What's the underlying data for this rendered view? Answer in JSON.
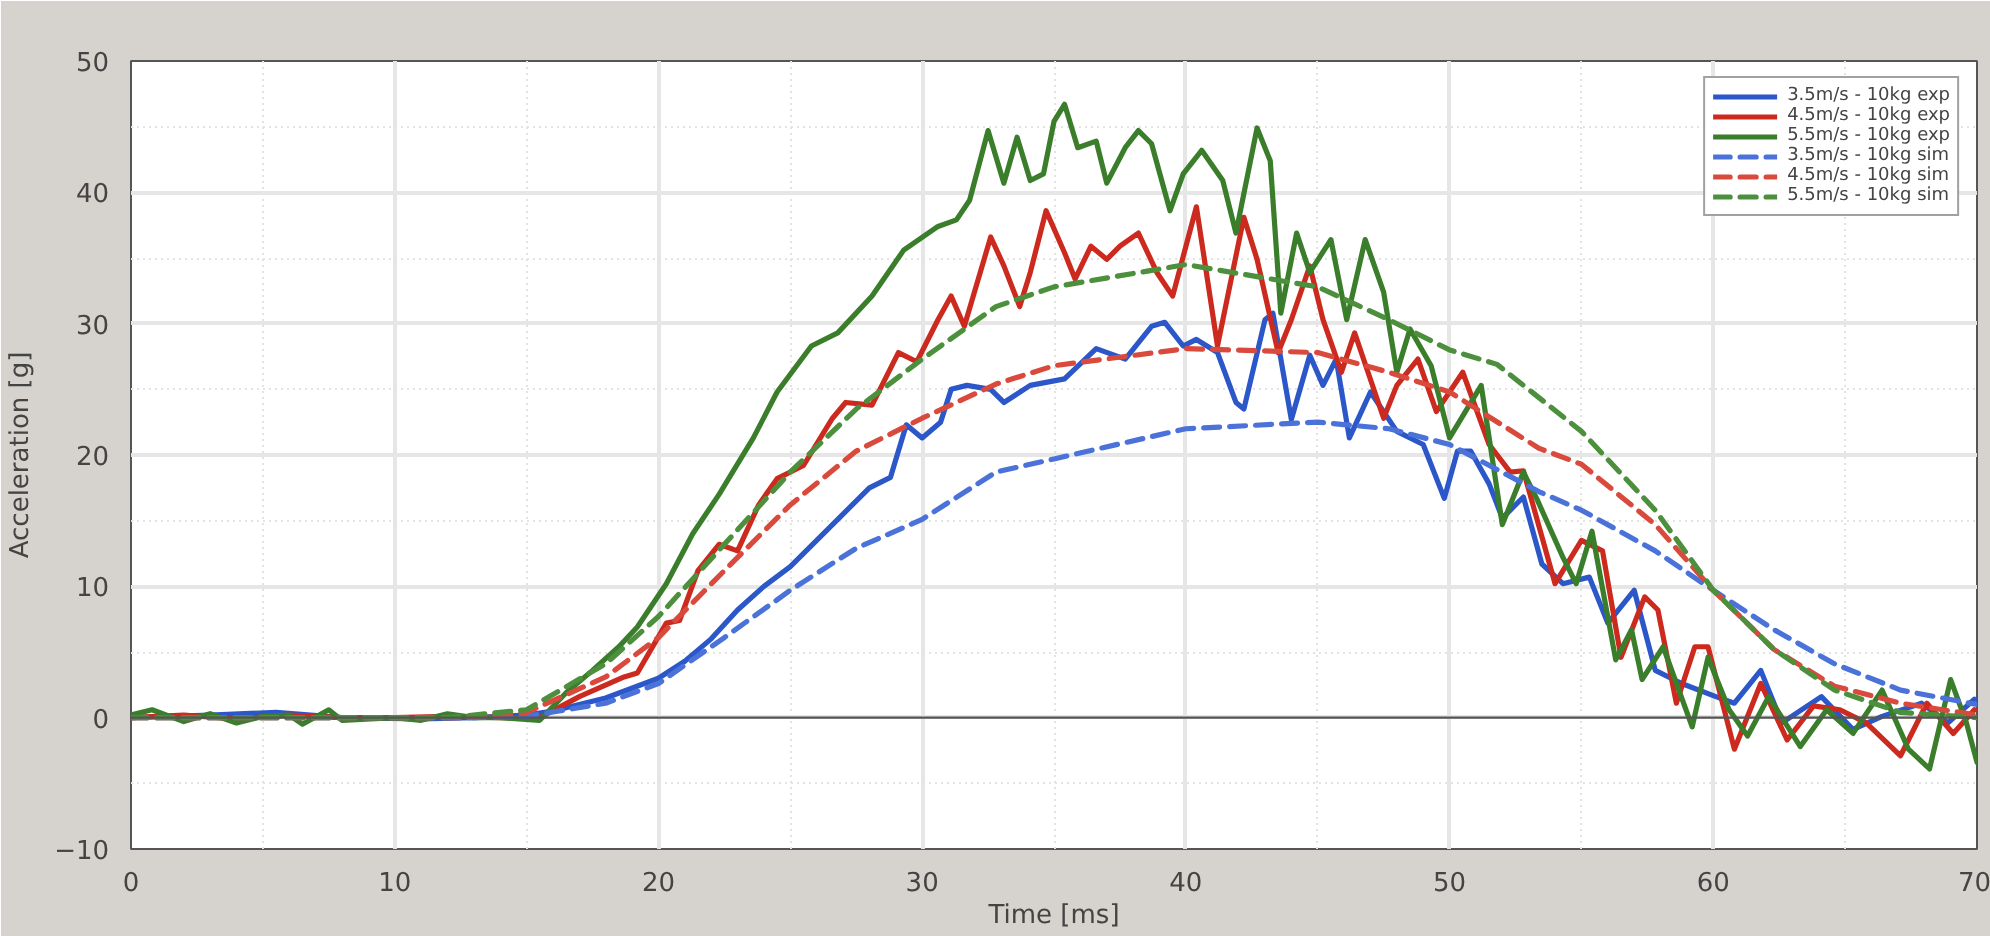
{
  "chart_data": {
    "type": "line",
    "xlabel": "Time [ms]",
    "ylabel": "Acceleration [g]",
    "xlim": [
      0,
      70
    ],
    "ylim": [
      -10,
      50
    ],
    "xticks": [
      0,
      10,
      20,
      30,
      40,
      50,
      60,
      70
    ],
    "yticks": [
      -10,
      0,
      10,
      20,
      30,
      40,
      50
    ],
    "grid": true,
    "legend": "top right",
    "line_style": "solid",
    "marker": "none",
    "ref_lines": [
      {
        "axis": "y",
        "value": 0,
        "color": "#555555",
        "line_style": "solid"
      }
    ],
    "series": [
      {
        "name": "3.5m/s - 10kg exp",
        "color": "#2b57c9",
        "x": [
          0,
          3,
          5.5,
          8,
          11,
          13,
          15,
          16,
          18,
          20,
          21,
          22,
          23,
          24,
          25,
          26,
          27,
          28,
          28.8,
          29.4,
          30,
          30.7,
          31.1,
          31.7,
          32.6,
          33.1,
          34.1,
          35.4,
          36.6,
          37.7,
          38.7,
          39.2,
          39.9,
          40.4,
          41.2,
          41.9,
          42.2,
          43.0,
          43.3,
          44.0,
          44.7,
          45.2,
          45.7,
          46.2,
          47.0,
          48.0,
          49.0,
          49.8,
          50.3,
          50.8,
          51.5,
          52.0,
          52.8,
          53.5,
          54.3,
          55.3,
          56.0,
          57.0,
          57.8,
          58.8,
          60.1,
          60.8,
          61.8,
          62.6,
          64.1,
          65.3,
          66.4,
          67.9,
          68.9,
          69.9
        ],
        "values": [
          0,
          0.2,
          0.4,
          0,
          -0.1,
          0,
          0.2,
          0.5,
          1.5,
          3.0,
          4.3,
          6.0,
          8.2,
          10,
          11.5,
          13.5,
          15.5,
          17.5,
          18.3,
          22.3,
          21.3,
          22.5,
          25,
          25.3,
          25,
          24,
          25.3,
          25.8,
          28.1,
          27.3,
          29.8,
          30.1,
          28.3,
          28.8,
          27.8,
          24,
          23.5,
          30.3,
          30.8,
          22.7,
          27.6,
          25.3,
          27.3,
          21.3,
          24.8,
          21.8,
          20.8,
          16.7,
          20.3,
          20.3,
          17.8,
          15.2,
          16.8,
          11.7,
          10.2,
          10.7,
          7.2,
          9.7,
          3.6,
          2.6,
          1.6,
          1.1,
          3.6,
          -0.4,
          1.6,
          -0.9,
          0.1,
          1.1,
          -0.4,
          1.4
        ]
      },
      {
        "name": "4.5m/s - 10kg exp",
        "color": "#cc2a1e",
        "x": [
          0,
          2,
          4,
          6,
          8,
          10,
          12,
          14,
          15.5,
          17.0,
          18.7,
          19.2,
          20.3,
          20.8,
          21.5,
          22.3,
          23.0,
          23.8,
          24.5,
          25.5,
          26.6,
          27.1,
          28.1,
          29.1,
          29.8,
          30.6,
          31.1,
          31.6,
          32.6,
          33.1,
          33.7,
          34.1,
          34.7,
          35.4,
          35.8,
          36.4,
          37.0,
          37.5,
          38.2,
          38.9,
          39.5,
          40.4,
          41.2,
          42.2,
          42.7,
          43.5,
          44.0,
          44.7,
          45.2,
          45.9,
          46.4,
          47.5,
          48.0,
          48.8,
          49.5,
          50.5,
          51.5,
          52.3,
          52.8,
          54.0,
          55.0,
          55.8,
          56.5,
          57.4,
          57.9,
          58.6,
          59.3,
          59.8,
          60.8,
          61.8,
          62.8,
          63.8,
          64.8,
          65.8,
          67.1,
          68.1,
          69.1,
          69.9
        ],
        "values": [
          0,
          0.2,
          -0.1,
          0.2,
          0,
          0,
          0.1,
          0,
          0,
          1.6,
          3.1,
          3.4,
          7.2,
          7.4,
          11.2,
          13.2,
          12.7,
          16.2,
          18.2,
          19.2,
          22.8,
          24,
          23.8,
          27.8,
          27.1,
          30.3,
          32.1,
          29.8,
          36.6,
          34.4,
          31.3,
          33.9,
          38.6,
          35.4,
          33.4,
          35.9,
          34.9,
          35.9,
          36.9,
          33.9,
          32.1,
          38.9,
          28.3,
          38.1,
          34.9,
          27.8,
          30.3,
          34.4,
          30.3,
          26.3,
          29.3,
          22.8,
          25.3,
          27.3,
          23.3,
          26.3,
          20.8,
          18.7,
          18.8,
          10.2,
          13.5,
          12.7,
          4.6,
          9.2,
          8.2,
          1.1,
          5.4,
          5.4,
          -2.4,
          2.6,
          -1.7,
          0.9,
          0.6,
          -0.4,
          -2.9,
          1.1,
          -1.2,
          0.6
        ]
      },
      {
        "name": "5.5m/s - 10kg exp",
        "color": "#3a7d2a",
        "x": [
          0,
          0.8,
          2,
          3,
          4,
          5,
          6,
          6.5,
          7.5,
          8,
          10,
          11,
          12,
          13,
          14,
          15.5,
          16.5,
          17.5,
          18.5,
          19.2,
          20.3,
          21.3,
          22.3,
          23.6,
          24.5,
          25.8,
          26.8,
          28.1,
          29.3,
          30.6,
          31.3,
          31.8,
          32.5,
          33.1,
          33.6,
          34.1,
          34.6,
          35.0,
          35.4,
          35.9,
          36.6,
          37.0,
          37.7,
          38.2,
          38.7,
          39.4,
          39.9,
          40.6,
          41.4,
          41.9,
          42.7,
          43.2,
          43.6,
          44.2,
          44.7,
          45.5,
          46.1,
          46.8,
          47.5,
          48.0,
          48.5,
          49.3,
          50.0,
          51.2,
          52.0,
          52.8,
          53.3,
          54.3,
          54.8,
          55.4,
          56.3,
          56.9,
          57.3,
          58.1,
          59.2,
          59.8,
          60.6,
          61.3,
          62.1,
          63.3,
          64.3,
          65.3,
          66.4,
          67.4,
          68.2,
          69.0,
          69.6,
          70
        ],
        "values": [
          0.2,
          0.6,
          -0.3,
          0.3,
          -0.4,
          0.1,
          0.2,
          -0.5,
          0.6,
          -0.2,
          0,
          -0.2,
          0.3,
          0,
          0,
          -0.2,
          1.9,
          3.6,
          5.4,
          6.9,
          10.2,
          14.0,
          17.0,
          21.3,
          24.8,
          28.3,
          29.3,
          32.1,
          35.6,
          37.4,
          37.9,
          39.4,
          44.7,
          40.7,
          44.2,
          40.9,
          41.4,
          45.4,
          46.7,
          43.4,
          43.9,
          40.7,
          43.4,
          44.7,
          43.7,
          38.6,
          41.4,
          43.2,
          40.9,
          36.9,
          44.9,
          42.4,
          30.8,
          36.9,
          33.9,
          36.4,
          30.3,
          36.4,
          32.4,
          26.3,
          29.6,
          26.8,
          21.3,
          25.3,
          14.7,
          18.7,
          16.7,
          12.2,
          10.2,
          14.2,
          4.4,
          6.7,
          2.9,
          5.4,
          -0.7,
          4.6,
          0.6,
          -1.4,
          1.6,
          -2.2,
          0.6,
          -1.2,
          2.1,
          -2.4,
          -3.9,
          2.9,
          -0.4,
          -3.4
        ]
      },
      {
        "name": "3.5m/s - 10kg sim",
        "color": "#4a72d8",
        "line_style": "dashed",
        "x": [
          0,
          13,
          15,
          18,
          20,
          22.5,
          25,
          27.5,
          30,
          32.8,
          35,
          40,
          45,
          47.7,
          50,
          53.4,
          55,
          57.8,
          60,
          62.3,
          64.6,
          67.1,
          70
        ],
        "values": [
          0,
          0,
          0.1,
          1.1,
          2.6,
          6.1,
          9.7,
          12.9,
          15.1,
          18.7,
          19.7,
          22.0,
          22.5,
          22.0,
          20.8,
          17.2,
          15.8,
          12.7,
          9.7,
          6.7,
          4.1,
          2.1,
          1.0
        ]
      },
      {
        "name": "4.5m/s - 10kg sim",
        "color": "#d94a3c",
        "line_style": "dashed",
        "x": [
          0,
          12.5,
          15,
          18,
          20,
          22.5,
          25,
          27.5,
          30,
          32.8,
          35,
          40,
          45,
          47.7,
          50,
          53.4,
          55,
          57.8,
          60,
          62.3,
          64.6,
          67.1,
          70
        ],
        "values": [
          0,
          0,
          0.4,
          3.1,
          6.1,
          11.2,
          16.2,
          20.3,
          22.8,
          25.4,
          26.8,
          28.1,
          27.8,
          26.3,
          24.8,
          20.5,
          19.3,
          14.7,
          9.7,
          5.2,
          2.4,
          1.1,
          0.2
        ]
      },
      {
        "name": "5.5m/s - 10kg sim",
        "color": "#4c8f3c",
        "line_style": "dashed",
        "x": [
          0,
          12,
          15,
          18,
          20,
          22.5,
          25,
          27.5,
          30,
          32.8,
          35,
          40,
          45,
          47.7,
          50,
          51.8,
          55,
          57.8,
          60,
          62.3,
          64.6,
          67.1,
          70
        ],
        "values": [
          0,
          0,
          0.6,
          4.1,
          7.7,
          13.2,
          18.7,
          23.5,
          27.3,
          31.3,
          32.8,
          34.5,
          32.8,
          30.3,
          28.0,
          26.9,
          21.8,
          15.8,
          9.7,
          5.2,
          2.1,
          0.4,
          0
        ]
      }
    ]
  }
}
